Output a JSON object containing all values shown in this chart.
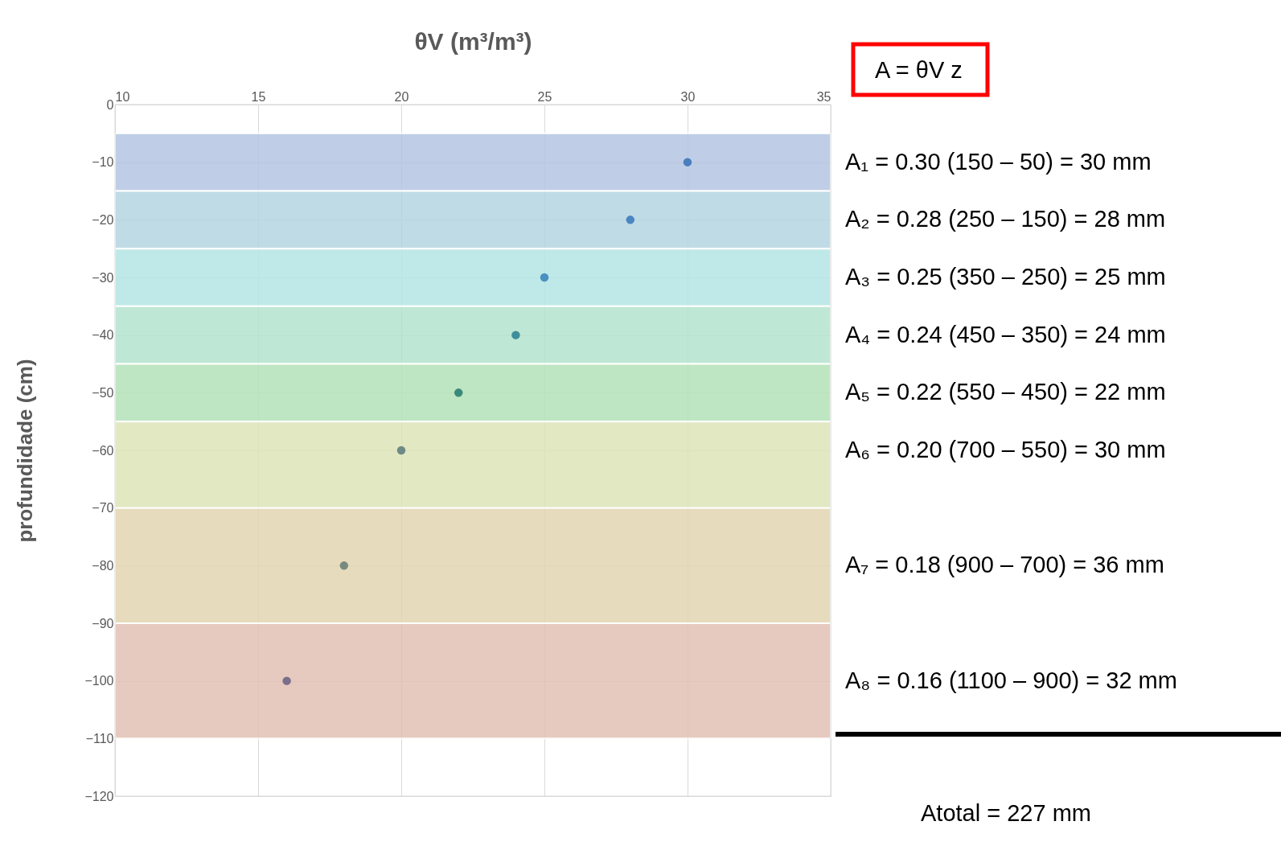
{
  "chart_data": {
    "type": "scatter",
    "xlabel": "θV  (m³/m³)",
    "ylabel": "profundidade  (cm)",
    "x": [
      30,
      28,
      25,
      24,
      22,
      20,
      18,
      16
    ],
    "values": [
      -10,
      -20,
      -30,
      -40,
      -50,
      -60,
      -80,
      -100
    ],
    "colors": [
      "#4a7ebf",
      "#4a86c2",
      "#4a90c0",
      "#3f8e9a",
      "#3a8a7c",
      "#6e8a88",
      "#788a80",
      "#7a6f8a"
    ],
    "xlim": [
      10,
      35
    ],
    "xticks": [
      10,
      15,
      20,
      25,
      30,
      35
    ],
    "ylim": [
      -120,
      0
    ],
    "yticks": [
      0,
      -10,
      -20,
      -30,
      -40,
      -50,
      -60,
      -70,
      -80,
      -90,
      -100,
      -110,
      -120
    ],
    "grid": true,
    "marker": "circle",
    "bands": [
      {
        "axis": "y",
        "from": -5,
        "to": -15,
        "color": "#b4c6e2"
      },
      {
        "axis": "y",
        "from": -15,
        "to": -25,
        "color": "#b5d5e2"
      },
      {
        "axis": "y",
        "from": -25,
        "to": -35,
        "color": "#b5e6e5"
      },
      {
        "axis": "y",
        "from": -35,
        "to": -45,
        "color": "#b5e3cf"
      },
      {
        "axis": "y",
        "from": -45,
        "to": -55,
        "color": "#b5e2b8"
      },
      {
        "axis": "y",
        "from": -55,
        "to": -70,
        "color": "#dde4b8"
      },
      {
        "axis": "y",
        "from": -70,
        "to": -90,
        "color": "#e2d5b1"
      },
      {
        "axis": "y",
        "from": -90,
        "to": -110,
        "color": "#e2c0b5"
      }
    ],
    "annotations": [
      "A = θV z",
      "A₁  = 0.30 (150 –   50) = 30 mm",
      "A₂  = 0.28 (250 – 150) = 28 mm",
      "A₃  = 0.25 (350 – 250) = 25 mm",
      "A₄  = 0.24 (450 – 350) = 24 mm",
      "A₅  = 0.22 (550 – 450) = 22 mm",
      "A₆  = 0.20 (700 – 550) = 30 mm",
      "A₇  = 0.18 (900 – 700) = 36 mm",
      "A₈  = 0.16 (1100 – 900) = 32 mm",
      "Atotal = 227 mm"
    ]
  }
}
